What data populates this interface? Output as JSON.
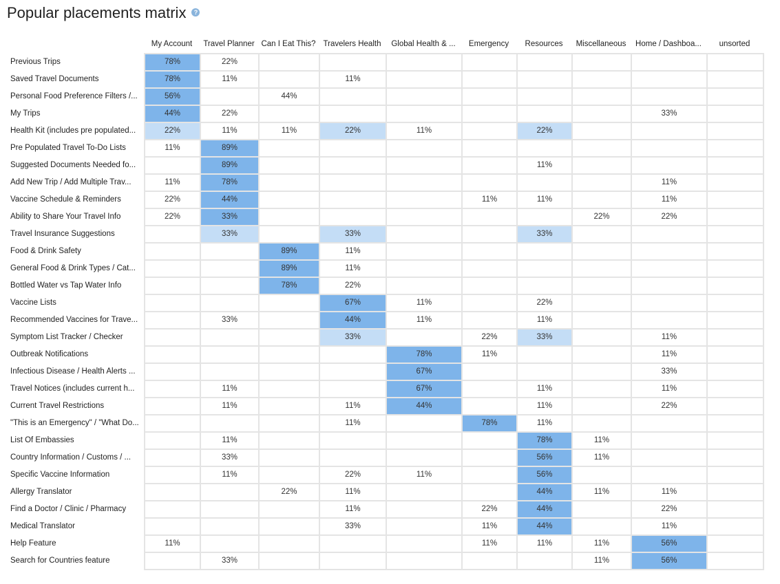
{
  "page": {
    "title": "Popular placements matrix",
    "help_icon": "question-circle-icon"
  },
  "colors": {
    "strong": "#7eb4ea",
    "light": "#c4ddf6",
    "grid": "#e4e4e4"
  },
  "chart_data": {
    "type": "heatmap",
    "title": "Popular placements matrix",
    "columns": [
      "My Account",
      "Travel Planner",
      "Can I Eat This?",
      "Travelers Health",
      "Global Health & ...",
      "Emergency",
      "Resources",
      "Miscellaneous",
      "Home / Dashboa...",
      "unsorted"
    ],
    "rows": [
      "Previous Trips",
      "Saved Travel Documents",
      "Personal Food Preference Filters /...",
      "My Trips",
      "Health Kit (includes pre populated...",
      "Pre Populated Travel To-Do Lists",
      "Suggested Documents Needed fo...",
      "Add New Trip / Add Multiple Trav...",
      "Vaccine Schedule & Reminders",
      "Ability to Share Your Travel Info",
      "Travel Insurance Suggestions",
      "Food & Drink Safety",
      "General Food & Drink Types / Cat...",
      "Bottled Water vs Tap Water Info",
      "Vaccine Lists",
      "Recommended Vaccines for Trave...",
      "Symptom List Tracker / Checker",
      "Outbreak Notifications",
      "Infectious Disease / Health Alerts ...",
      "Travel Notices (includes current h...",
      "Current Travel Restrictions",
      "\"This is an Emergency\" / \"What Do...",
      "List Of Embassies",
      "Country Information / Customs / ...",
      "Specific Vaccine Information",
      "Allergy Translator",
      "Find a Doctor / Clinic / Pharmacy",
      "Medical Translator",
      "Help Feature",
      "Search for Countries feature"
    ],
    "values": [
      [
        78,
        22,
        null,
        null,
        null,
        null,
        null,
        null,
        null,
        null
      ],
      [
        78,
        11,
        null,
        11,
        null,
        null,
        null,
        null,
        null,
        null
      ],
      [
        56,
        null,
        44,
        null,
        null,
        null,
        null,
        null,
        null,
        null
      ],
      [
        44,
        22,
        null,
        null,
        null,
        null,
        null,
        null,
        33,
        null
      ],
      [
        22,
        11,
        11,
        22,
        11,
        null,
        22,
        null,
        null,
        null
      ],
      [
        11,
        89,
        null,
        null,
        null,
        null,
        null,
        null,
        null,
        null
      ],
      [
        null,
        89,
        null,
        null,
        null,
        null,
        11,
        null,
        null,
        null
      ],
      [
        11,
        78,
        null,
        null,
        null,
        null,
        null,
        null,
        11,
        null
      ],
      [
        22,
        44,
        null,
        null,
        null,
        11,
        11,
        null,
        11,
        null
      ],
      [
        22,
        33,
        null,
        null,
        null,
        null,
        null,
        22,
        22,
        null
      ],
      [
        null,
        33,
        null,
        33,
        null,
        null,
        33,
        null,
        null,
        null
      ],
      [
        null,
        null,
        89,
        11,
        null,
        null,
        null,
        null,
        null,
        null
      ],
      [
        null,
        null,
        89,
        11,
        null,
        null,
        null,
        null,
        null,
        null
      ],
      [
        null,
        null,
        78,
        22,
        null,
        null,
        null,
        null,
        null,
        null
      ],
      [
        null,
        null,
        null,
        67,
        11,
        null,
        22,
        null,
        null,
        null
      ],
      [
        null,
        33,
        null,
        44,
        11,
        null,
        11,
        null,
        null,
        null
      ],
      [
        null,
        null,
        null,
        33,
        null,
        22,
        33,
        null,
        11,
        null
      ],
      [
        null,
        null,
        null,
        null,
        78,
        11,
        null,
        null,
        11,
        null
      ],
      [
        null,
        null,
        null,
        null,
        67,
        null,
        null,
        null,
        33,
        null
      ],
      [
        null,
        11,
        null,
        null,
        67,
        null,
        11,
        null,
        11,
        null
      ],
      [
        null,
        11,
        null,
        11,
        44,
        null,
        11,
        null,
        22,
        null
      ],
      [
        null,
        null,
        null,
        11,
        null,
        78,
        11,
        null,
        null,
        null
      ],
      [
        null,
        11,
        null,
        null,
        null,
        null,
        78,
        11,
        null,
        null
      ],
      [
        null,
        33,
        null,
        null,
        null,
        null,
        56,
        11,
        null,
        null
      ],
      [
        null,
        11,
        null,
        22,
        11,
        null,
        56,
        null,
        null,
        null
      ],
      [
        null,
        null,
        22,
        11,
        null,
        null,
        44,
        11,
        11,
        null
      ],
      [
        null,
        null,
        null,
        11,
        null,
        22,
        44,
        null,
        22,
        null
      ],
      [
        null,
        null,
        null,
        33,
        null,
        11,
        44,
        null,
        11,
        null
      ],
      [
        11,
        null,
        null,
        null,
        null,
        11,
        11,
        11,
        56,
        null
      ],
      [
        null,
        33,
        null,
        null,
        null,
        null,
        null,
        11,
        56,
        null
      ]
    ],
    "shading": [
      [
        "strong",
        "",
        "",
        "",
        "",
        "",
        "",
        "",
        "",
        ""
      ],
      [
        "strong",
        "",
        "",
        "",
        "",
        "",
        "",
        "",
        "",
        ""
      ],
      [
        "strong",
        "",
        "",
        "",
        "",
        "",
        "",
        "",
        "",
        ""
      ],
      [
        "strong",
        "",
        "",
        "",
        "",
        "",
        "",
        "",
        "",
        ""
      ],
      [
        "light",
        "",
        "",
        "light",
        "",
        "",
        "light",
        "",
        "",
        ""
      ],
      [
        "",
        "strong",
        "",
        "",
        "",
        "",
        "",
        "",
        "",
        ""
      ],
      [
        "",
        "strong",
        "",
        "",
        "",
        "",
        "",
        "",
        "",
        ""
      ],
      [
        "",
        "strong",
        "",
        "",
        "",
        "",
        "",
        "",
        "",
        ""
      ],
      [
        "",
        "strong",
        "",
        "",
        "",
        "",
        "",
        "",
        "",
        ""
      ],
      [
        "",
        "strong",
        "",
        "",
        "",
        "",
        "",
        "",
        "",
        ""
      ],
      [
        "",
        "light",
        "",
        "light",
        "",
        "",
        "light",
        "",
        "",
        ""
      ],
      [
        "",
        "",
        "strong",
        "",
        "",
        "",
        "",
        "",
        "",
        ""
      ],
      [
        "",
        "",
        "strong",
        "",
        "",
        "",
        "",
        "",
        "",
        ""
      ],
      [
        "",
        "",
        "strong",
        "",
        "",
        "",
        "",
        "",
        "",
        ""
      ],
      [
        "",
        "",
        "",
        "strong",
        "",
        "",
        "",
        "",
        "",
        ""
      ],
      [
        "",
        "",
        "",
        "strong",
        "",
        "",
        "",
        "",
        "",
        ""
      ],
      [
        "",
        "",
        "",
        "light",
        "",
        "",
        "light",
        "",
        "",
        ""
      ],
      [
        "",
        "",
        "",
        "",
        "strong",
        "",
        "",
        "",
        "",
        ""
      ],
      [
        "",
        "",
        "",
        "",
        "strong",
        "",
        "",
        "",
        "",
        ""
      ],
      [
        "",
        "",
        "",
        "",
        "strong",
        "",
        "",
        "",
        "",
        ""
      ],
      [
        "",
        "",
        "",
        "",
        "strong",
        "",
        "",
        "",
        "",
        ""
      ],
      [
        "",
        "",
        "",
        "",
        "",
        "strong",
        "",
        "",
        "",
        ""
      ],
      [
        "",
        "",
        "",
        "",
        "",
        "",
        "strong",
        "",
        "",
        ""
      ],
      [
        "",
        "",
        "",
        "",
        "",
        "",
        "strong",
        "",
        "",
        ""
      ],
      [
        "",
        "",
        "",
        "",
        "",
        "",
        "strong",
        "",
        "",
        ""
      ],
      [
        "",
        "",
        "",
        "",
        "",
        "",
        "strong",
        "",
        "",
        ""
      ],
      [
        "",
        "",
        "",
        "",
        "",
        "",
        "strong",
        "",
        "",
        ""
      ],
      [
        "",
        "",
        "",
        "",
        "",
        "",
        "strong",
        "",
        "",
        ""
      ],
      [
        "",
        "",
        "",
        "",
        "",
        "",
        "",
        "",
        "strong",
        ""
      ],
      [
        "",
        "",
        "",
        "",
        "",
        "",
        "",
        "",
        "strong",
        ""
      ]
    ],
    "unit": "%",
    "grid": true
  }
}
